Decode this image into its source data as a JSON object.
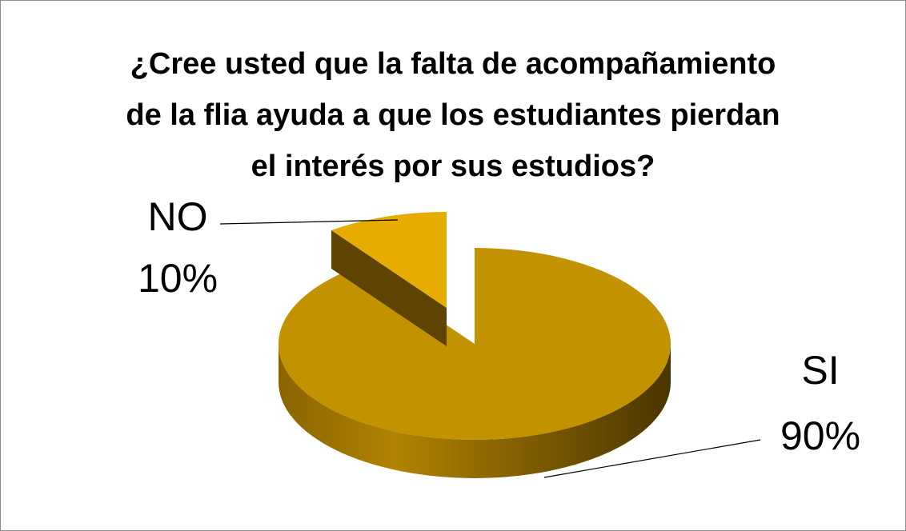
{
  "chart_data": {
    "type": "pie",
    "title": "¿Cree usted que la falta de acompañamiento de la flia ayuda a que los estudiantes pierdan el interés por sus estudios?",
    "categories": [
      "SI",
      "NO"
    ],
    "values": [
      90,
      10
    ],
    "value_labels": [
      "90%",
      "10%"
    ],
    "colors": [
      "#c39200",
      "#e6ad00"
    ]
  }
}
